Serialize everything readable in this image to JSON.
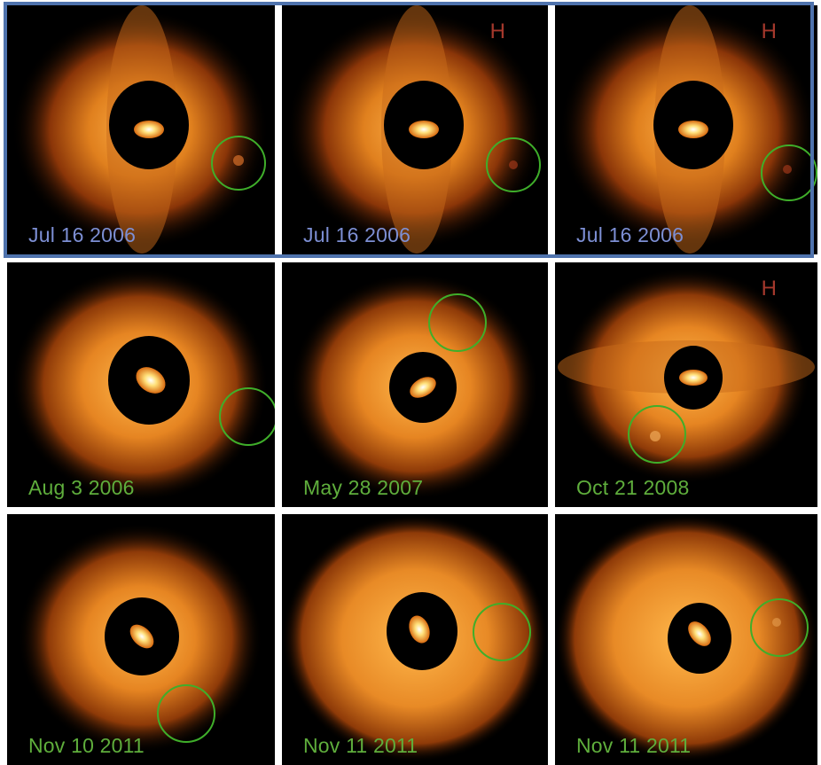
{
  "colors": {
    "blue_label": "#7d8fd4",
    "green_label": "#5fae3c",
    "band_label": "#a4382c",
    "circle_green": "#3fae2a",
    "frame_blue": "#4f73ad"
  },
  "panels": [
    {
      "date": "Jul 16 2006",
      "band": ""
    },
    {
      "date": "Jul 16 2006",
      "band": "H"
    },
    {
      "date": "Jul 16 2006",
      "band": "H"
    },
    {
      "date": "Aug 3 2006",
      "band": ""
    },
    {
      "date": "May 28 2007",
      "band": ""
    },
    {
      "date": "Oct 21 2008",
      "band": "H"
    },
    {
      "date": "Nov 10 2011",
      "band": ""
    },
    {
      "date": "Nov 11 2011",
      "band": ""
    },
    {
      "date": "Nov 11 2011",
      "band": ""
    }
  ]
}
